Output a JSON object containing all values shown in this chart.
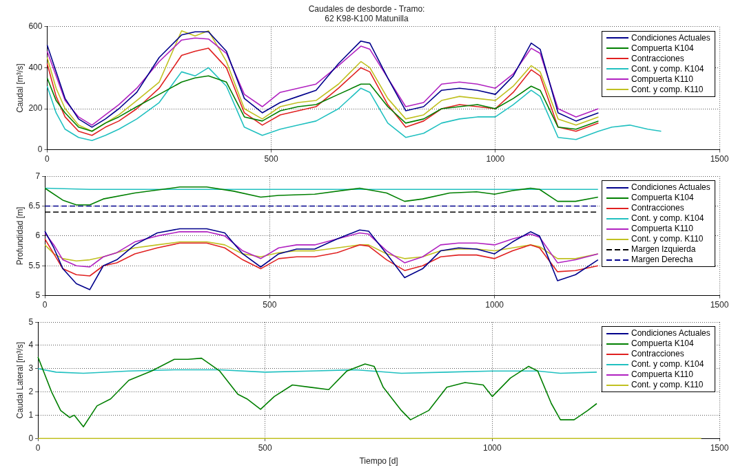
{
  "chart_data": [
    {
      "type": "line",
      "title": "Caudales de desborde - Tramo:\n62 K98-K100 Matunilla",
      "ylabel": "Caudal [m³/s]",
      "xlim": [
        0,
        1500
      ],
      "xticks": [
        0,
        500,
        1000,
        1500
      ],
      "ylim": [
        0,
        600
      ],
      "yticks": [
        0,
        200,
        400,
        600
      ],
      "grid": true,
      "legend": "top right",
      "marker": "none",
      "series": [
        {
          "name": "Condiciones Actuales",
          "color": "#00008b",
          "x": [
            0,
            20,
            40,
            70,
            100,
            130,
            160,
            200,
            250,
            300,
            330,
            360,
            400,
            440,
            480,
            520,
            560,
            600,
            650,
            700,
            720,
            760,
            800,
            840,
            880,
            920,
            960,
            1000,
            1040,
            1080,
            1100,
            1140,
            1180,
            1230
          ],
          "values": [
            510,
            380,
            250,
            150,
            110,
            150,
            200,
            280,
            450,
            560,
            575,
            575,
            480,
            250,
            180,
            230,
            260,
            290,
            420,
            530,
            520,
            350,
            190,
            210,
            290,
            300,
            290,
            270,
            360,
            520,
            490,
            180,
            140,
            180
          ]
        },
        {
          "name": "Compuerta K104",
          "color": "#007f00",
          "x": [
            0,
            20,
            40,
            70,
            100,
            130,
            160,
            200,
            250,
            300,
            330,
            360,
            400,
            440,
            480,
            520,
            560,
            600,
            650,
            700,
            720,
            760,
            800,
            840,
            880,
            920,
            960,
            1000,
            1040,
            1080,
            1100,
            1140,
            1180,
            1230
          ],
          "values": [
            350,
            240,
            180,
            110,
            90,
            130,
            160,
            210,
            270,
            330,
            350,
            360,
            330,
            160,
            140,
            190,
            210,
            220,
            270,
            320,
            320,
            210,
            130,
            150,
            200,
            210,
            220,
            200,
            250,
            310,
            290,
            110,
            100,
            140
          ]
        },
        {
          "name": "Contracciones",
          "color": "#e02020",
          "x": [
            0,
            20,
            40,
            70,
            100,
            130,
            160,
            200,
            250,
            300,
            330,
            360,
            400,
            440,
            480,
            520,
            560,
            600,
            650,
            700,
            720,
            760,
            800,
            840,
            880,
            920,
            960,
            1000,
            1040,
            1080,
            1100,
            1140,
            1180,
            1230
          ],
          "values": [
            420,
            260,
            160,
            90,
            70,
            110,
            140,
            200,
            300,
            460,
            480,
            495,
            400,
            180,
            120,
            170,
            190,
            210,
            300,
            400,
            380,
            220,
            110,
            140,
            200,
            220,
            210,
            200,
            280,
            390,
            360,
            110,
            90,
            130
          ]
        },
        {
          "name": "Cont. y comp. K104",
          "color": "#20c0c0",
          "x": [
            0,
            20,
            40,
            70,
            100,
            130,
            160,
            200,
            250,
            300,
            330,
            360,
            400,
            440,
            480,
            520,
            560,
            600,
            650,
            700,
            720,
            760,
            800,
            840,
            880,
            920,
            960,
            1000,
            1040,
            1080,
            1100,
            1140,
            1180,
            1230,
            1260,
            1300,
            1340,
            1370
          ],
          "values": [
            310,
            180,
            100,
            60,
            45,
            70,
            100,
            150,
            230,
            380,
            360,
            400,
            310,
            110,
            70,
            100,
            120,
            140,
            200,
            300,
            280,
            130,
            60,
            80,
            130,
            150,
            160,
            160,
            220,
            290,
            260,
            60,
            50,
            90,
            110,
            120,
            100,
            90
          ]
        },
        {
          "name": "Compuerta K110",
          "color": "#b020c0",
          "x": [
            0,
            20,
            40,
            70,
            100,
            130,
            160,
            200,
            250,
            300,
            330,
            360,
            400,
            440,
            480,
            520,
            560,
            600,
            650,
            700,
            720,
            760,
            800,
            840,
            880,
            920,
            960,
            1000,
            1040,
            1080,
            1100,
            1140,
            1180,
            1230
          ],
          "values": [
            480,
            360,
            240,
            160,
            120,
            170,
            220,
            300,
            430,
            535,
            545,
            540,
            470,
            270,
            210,
            280,
            300,
            320,
            410,
            505,
            490,
            350,
            210,
            230,
            320,
            330,
            320,
            300,
            370,
            495,
            470,
            200,
            160,
            200
          ]
        },
        {
          "name": "Cont. y comp. K110",
          "color": "#c0c020",
          "x": [
            0,
            20,
            40,
            70,
            100,
            130,
            160,
            200,
            250,
            300,
            330,
            360,
            400,
            440,
            480,
            520,
            560,
            600,
            650,
            700,
            720,
            760,
            800,
            840,
            880,
            920,
            960,
            1000,
            1040,
            1080,
            1100,
            1140,
            1180,
            1230
          ],
          "values": [
            450,
            300,
            200,
            120,
            90,
            130,
            170,
            240,
            330,
            580,
            555,
            580,
            430,
            200,
            150,
            210,
            230,
            240,
            320,
            430,
            400,
            250,
            150,
            170,
            240,
            260,
            250,
            240,
            310,
            410,
            380,
            150,
            120,
            160
          ]
        }
      ]
    },
    {
      "type": "line",
      "ylabel": "Profundidad [m]",
      "xlim": [
        0,
        1500
      ],
      "xticks": [
        0,
        500,
        1000,
        1500
      ],
      "ylim": [
        5,
        7
      ],
      "yticks": [
        5,
        5.5,
        6,
        6.5,
        7
      ],
      "grid": true,
      "legend": "top right",
      "marker": "none",
      "series": [
        {
          "name": "Condiciones Actuales",
          "color": "#00008b",
          "x": [
            0,
            20,
            40,
            70,
            100,
            130,
            160,
            200,
            250,
            300,
            360,
            400,
            440,
            480,
            520,
            560,
            600,
            650,
            700,
            720,
            760,
            800,
            840,
            880,
            920,
            960,
            1000,
            1040,
            1080,
            1100,
            1140,
            1180,
            1230
          ],
          "values": [
            6.08,
            5.8,
            5.45,
            5.2,
            5.1,
            5.5,
            5.6,
            5.85,
            6.05,
            6.12,
            6.12,
            6.05,
            5.7,
            5.48,
            5.7,
            5.78,
            5.78,
            5.95,
            6.1,
            6.08,
            5.7,
            5.3,
            5.45,
            5.75,
            5.8,
            5.78,
            5.7,
            5.9,
            6.07,
            6.0,
            5.25,
            5.35,
            5.6
          ]
        },
        {
          "name": "Compuerta K104",
          "color": "#007f00",
          "x": [
            0,
            40,
            70,
            100,
            130,
            200,
            300,
            360,
            420,
            480,
            520,
            600,
            700,
            760,
            800,
            840,
            900,
            960,
            1000,
            1040,
            1080,
            1100,
            1140,
            1180,
            1230
          ],
          "values": [
            6.8,
            6.6,
            6.52,
            6.52,
            6.62,
            6.72,
            6.82,
            6.82,
            6.75,
            6.65,
            6.68,
            6.7,
            6.8,
            6.72,
            6.58,
            6.62,
            6.72,
            6.74,
            6.7,
            6.76,
            6.8,
            6.78,
            6.58,
            6.58,
            6.65
          ]
        },
        {
          "name": "Contracciones",
          "color": "#e02020",
          "x": [
            0,
            20,
            40,
            70,
            100,
            130,
            160,
            200,
            250,
            300,
            360,
            400,
            440,
            480,
            520,
            560,
            600,
            650,
            700,
            720,
            760,
            800,
            840,
            880,
            920,
            960,
            1000,
            1040,
            1080,
            1100,
            1140,
            1180,
            1230
          ],
          "values": [
            5.95,
            5.7,
            5.45,
            5.35,
            5.33,
            5.5,
            5.55,
            5.7,
            5.8,
            5.88,
            5.88,
            5.8,
            5.6,
            5.45,
            5.62,
            5.65,
            5.65,
            5.72,
            5.85,
            5.83,
            5.6,
            5.42,
            5.5,
            5.65,
            5.68,
            5.68,
            5.62,
            5.75,
            5.85,
            5.8,
            5.4,
            5.42,
            5.5
          ]
        },
        {
          "name": "Cont. y comp. K104",
          "color": "#20c0c0",
          "x": [
            0,
            100,
            300,
            500,
            700,
            900,
            1100,
            1230
          ],
          "values": [
            6.8,
            6.78,
            6.78,
            6.78,
            6.78,
            6.78,
            6.78,
            6.78
          ]
        },
        {
          "name": "Compuerta K110",
          "color": "#b020c0",
          "x": [
            0,
            20,
            40,
            70,
            100,
            130,
            160,
            200,
            250,
            300,
            360,
            400,
            440,
            480,
            520,
            560,
            600,
            650,
            700,
            720,
            760,
            800,
            840,
            880,
            920,
            960,
            1000,
            1040,
            1080,
            1100,
            1140,
            1180,
            1230
          ],
          "values": [
            6.05,
            5.85,
            5.6,
            5.5,
            5.48,
            5.65,
            5.72,
            5.9,
            6.0,
            6.07,
            6.07,
            6.0,
            5.75,
            5.62,
            5.8,
            5.85,
            5.85,
            5.95,
            6.05,
            6.03,
            5.75,
            5.55,
            5.65,
            5.85,
            5.88,
            5.88,
            5.85,
            5.95,
            6.03,
            5.98,
            5.55,
            5.6,
            5.7
          ]
        },
        {
          "name": "Cont. y comp. K110",
          "color": "#c0c020",
          "x": [
            0,
            20,
            40,
            70,
            100,
            130,
            160,
            200,
            250,
            300,
            360,
            400,
            440,
            480,
            520,
            560,
            600,
            650,
            700,
            720,
            760,
            800,
            840,
            880,
            920,
            960,
            1000,
            1040,
            1080,
            1100,
            1140,
            1180,
            1230
          ],
          "values": [
            5.85,
            5.7,
            5.62,
            5.58,
            5.6,
            5.65,
            5.72,
            5.8,
            5.85,
            5.9,
            5.9,
            5.85,
            5.7,
            5.65,
            5.72,
            5.75,
            5.75,
            5.8,
            5.85,
            5.85,
            5.7,
            5.62,
            5.65,
            5.75,
            5.78,
            5.78,
            5.75,
            5.8,
            5.85,
            5.82,
            5.62,
            5.62,
            5.7
          ]
        },
        {
          "name": "Margen Izquierda",
          "color": "#000000",
          "line_style": "dashed",
          "x": [
            0,
            1230
          ],
          "values": [
            6.4,
            6.4
          ]
        },
        {
          "name": "Margen Derecha",
          "color": "#00008b",
          "line_style": "dashed",
          "x": [
            0,
            1230
          ],
          "values": [
            6.5,
            6.5
          ]
        }
      ]
    },
    {
      "type": "line",
      "xlabel": "Tiempo [d]",
      "ylabel": "Caudal Lateral [m³/s]",
      "xlim": [
        0,
        1500
      ],
      "xticks": [
        0,
        500,
        1000,
        1500
      ],
      "ylim": [
        0,
        5
      ],
      "yticks": [
        0,
        1,
        2,
        3,
        4,
        5
      ],
      "grid": true,
      "legend": "top right",
      "marker": "none",
      "series": [
        {
          "name": "Condiciones Actuales",
          "color": "#00008b"
        },
        {
          "name": "Compuerta K104",
          "color": "#007f00",
          "x": [
            0,
            10,
            30,
            50,
            70,
            80,
            100,
            130,
            160,
            200,
            250,
            300,
            330,
            360,
            400,
            440,
            460,
            490,
            520,
            560,
            600,
            640,
            680,
            720,
            740,
            760,
            800,
            820,
            860,
            900,
            940,
            980,
            1000,
            1040,
            1080,
            1100,
            1130,
            1150,
            1180,
            1210,
            1230
          ],
          "values": [
            3.5,
            3.0,
            2.0,
            1.2,
            0.9,
            1.0,
            0.5,
            1.4,
            1.7,
            2.5,
            2.9,
            3.4,
            3.4,
            3.45,
            2.9,
            1.9,
            1.7,
            1.25,
            1.8,
            2.3,
            2.2,
            2.1,
            2.9,
            3.2,
            3.1,
            2.2,
            1.2,
            0.8,
            1.2,
            2.2,
            2.4,
            2.3,
            1.8,
            2.6,
            3.1,
            2.9,
            1.5,
            0.8,
            0.8,
            1.2,
            1.5
          ]
        },
        {
          "name": "Contracciones",
          "color": "#e02020"
        },
        {
          "name": "Cont. y comp. K104",
          "color": "#20c0c0",
          "x": [
            0,
            40,
            100,
            200,
            300,
            400,
            500,
            600,
            700,
            800,
            900,
            1000,
            1100,
            1150,
            1230
          ],
          "values": [
            3.0,
            2.85,
            2.8,
            2.9,
            2.95,
            2.95,
            2.85,
            2.9,
            2.95,
            2.8,
            2.85,
            2.9,
            2.9,
            2.8,
            2.85
          ]
        },
        {
          "name": "Compuerta K110",
          "color": "#b020c0"
        },
        {
          "name": "Cont. y comp. K110",
          "color": "#c0c020",
          "x": [
            0,
            1460
          ],
          "values": [
            0,
            0
          ]
        }
      ]
    }
  ]
}
